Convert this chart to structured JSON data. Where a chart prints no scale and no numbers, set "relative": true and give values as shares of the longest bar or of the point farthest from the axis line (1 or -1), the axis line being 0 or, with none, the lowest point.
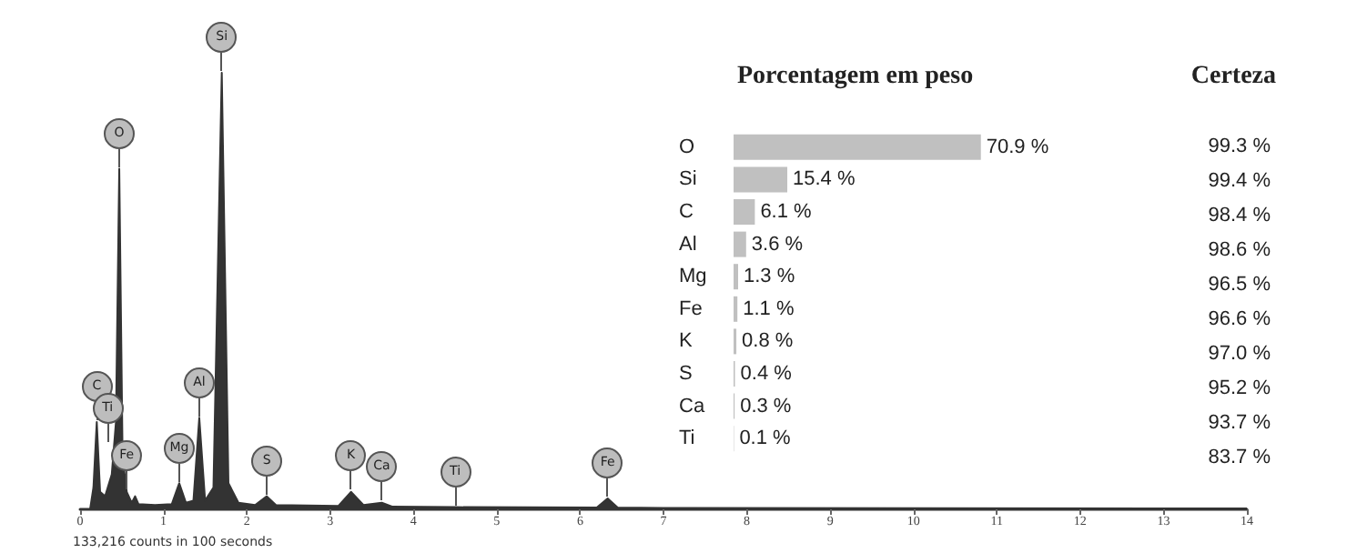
{
  "chart_data": [
    {
      "type": "area",
      "relative": true,
      "color": "#333333",
      "xlim": [
        0,
        14
      ],
      "xticks": [
        0,
        1,
        2,
        3,
        4,
        5,
        6,
        7,
        8,
        9,
        10,
        11,
        12,
        13,
        14
      ],
      "grid": false,
      "x": [
        0,
        0.12,
        0.16,
        0.2,
        0.24,
        0.3,
        0.38,
        0.43,
        0.47,
        0.51,
        0.56,
        0.62,
        0.66,
        0.7,
        0.9,
        1.1,
        1.19,
        1.27,
        1.36,
        1.43,
        1.5,
        1.6,
        1.7,
        1.78,
        1.9,
        2.1,
        2.24,
        2.35,
        3.1,
        3.25,
        3.4,
        3.62,
        3.75,
        4.5,
        6.2,
        6.33,
        6.45,
        7,
        14
      ],
      "values": [
        0,
        0,
        0.05,
        0.2,
        0.04,
        0.03,
        0.08,
        0.2,
        0.78,
        0.12,
        0.04,
        0.015,
        0.03,
        0.012,
        0.01,
        0.012,
        0.06,
        0.015,
        0.02,
        0.21,
        0.02,
        0.05,
        1.0,
        0.06,
        0.015,
        0.01,
        0.03,
        0.01,
        0.008,
        0.04,
        0.01,
        0.015,
        0.006,
        0.005,
        0.004,
        0.025,
        0.004,
        0.003,
        0.002
      ],
      "annotations": [
        {
          "text": "C",
          "x": 0.2,
          "y": 0.2
        },
        {
          "text": "Ti",
          "x": 0.33,
          "y": 0.15
        },
        {
          "text": "O",
          "x": 0.47,
          "y": 0.78
        },
        {
          "text": "Fe",
          "x": 0.56,
          "y": 0.04
        },
        {
          "text": "Mg",
          "x": 1.19,
          "y": 0.06
        },
        {
          "text": "Al",
          "x": 1.43,
          "y": 0.21
        },
        {
          "text": "Si",
          "x": 1.7,
          "y": 1.0
        },
        {
          "text": "S",
          "x": 2.24,
          "y": 0.03
        },
        {
          "text": "K",
          "x": 3.25,
          "y": 0.04
        },
        {
          "text": "Ca",
          "x": 3.62,
          "y": 0.015
        },
        {
          "text": "Ti",
          "x": 4.5,
          "y": 0.005
        },
        {
          "text": "Fe",
          "x": 6.33,
          "y": 0.025
        },
        "133,216 counts in 100 seconds"
      ]
    },
    {
      "type": "bar",
      "orientation": "horizontal",
      "title": "Porcentagem em peso",
      "color": "#c0c0c0",
      "categories": [
        "O",
        "Si",
        "C",
        "Al",
        "Mg",
        "Fe",
        "K",
        "S",
        "Ca",
        "Ti"
      ],
      "values": [
        70.9,
        15.4,
        6.1,
        3.6,
        1.3,
        1.1,
        0.8,
        0.4,
        0.3,
        0.1
      ],
      "value_labels": [
        "70.9 %",
        "15.4 %",
        "6.1 %",
        "3.6 %",
        "1.3 %",
        "1.1 %",
        "0.8 %",
        "0.4 %",
        "0.3 %",
        "0.1 %"
      ]
    },
    {
      "type": "other",
      "title": "Certeza",
      "annotations": [
        "99.3 %",
        "99.4 %",
        "98.4 %",
        "98.6 %",
        "96.5 %",
        "96.6 %",
        "97.0 %",
        "95.2 %",
        "93.7 %",
        "83.7 %"
      ]
    }
  ]
}
